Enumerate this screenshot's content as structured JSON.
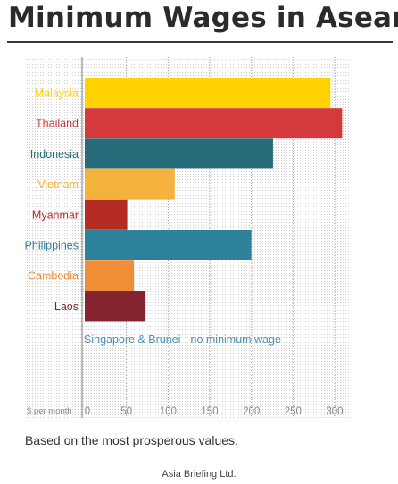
{
  "header": {
    "title": "Minimum Wages in Asean"
  },
  "chart_data": {
    "type": "bar",
    "orientation": "horizontal",
    "title": "Minimum Wages in Asean",
    "xlabel": "$ per month",
    "ylabel": "",
    "categories": [
      "Malaysia",
      "Thailand",
      "Indonesia",
      "Vietnam",
      "Myanmar",
      "Philippines",
      "Cambodia",
      "Laos"
    ],
    "values": [
      295,
      309,
      226,
      108,
      51,
      200,
      59,
      73
    ],
    "colors": [
      "#ffd200",
      "#d4393b",
      "#266b7a",
      "#f3b33d",
      "#b52b26",
      "#2e819b",
      "#f08d36",
      "#85242f"
    ],
    "xlim": [
      0,
      330
    ],
    "xticks": [
      0,
      50,
      100,
      150,
      200,
      250,
      300
    ],
    "annotation": "Singapore & Brunei - no minimum wage",
    "annotation_color": "#4a90b5",
    "grid": true
  },
  "footer": {
    "note": "Based on the most prosperous values.",
    "source": "Asia Briefing Ltd."
  }
}
